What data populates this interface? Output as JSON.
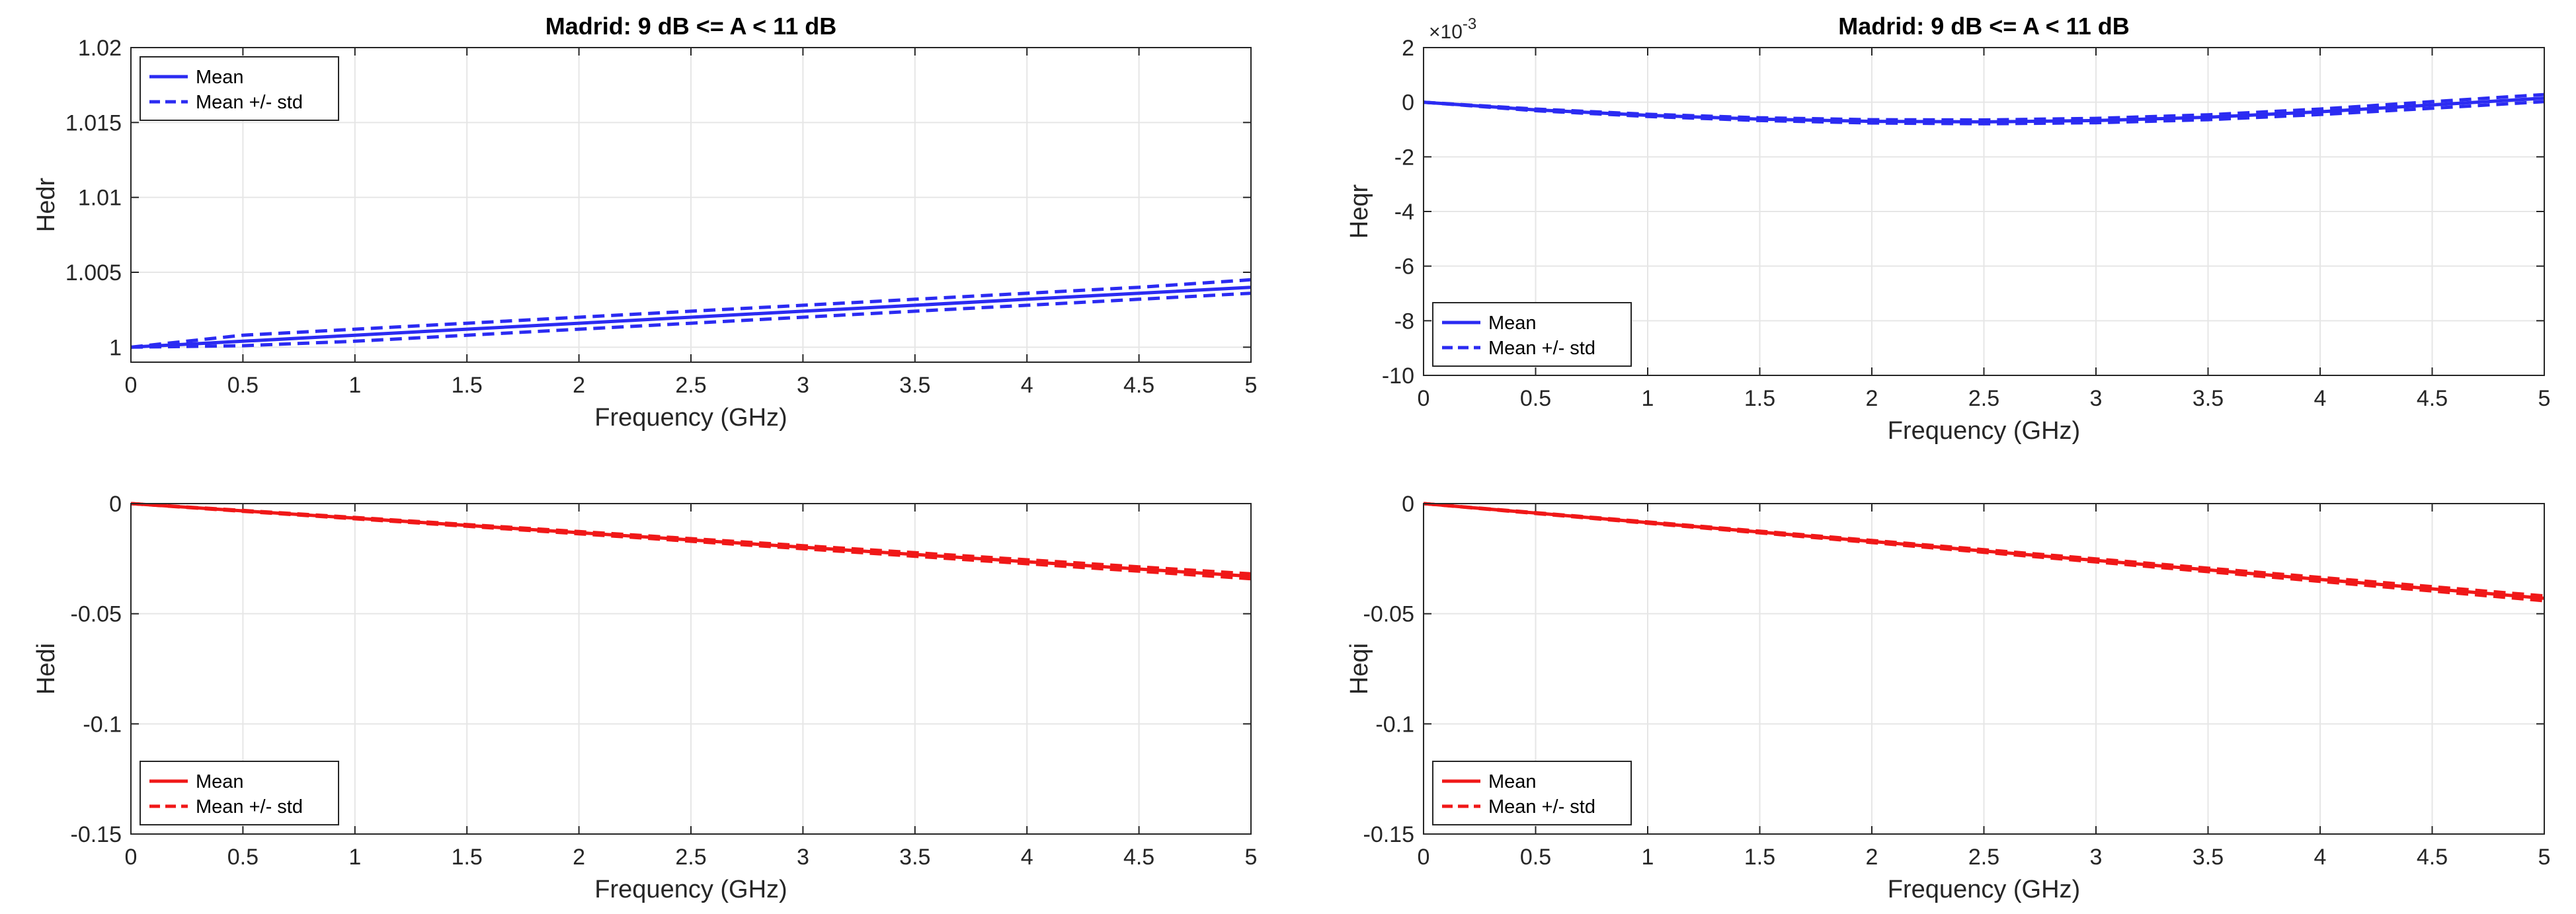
{
  "chart_data": [
    {
      "id": "hedr",
      "type": "line",
      "title": "Madrid: 9 dB <= A < 11 dB",
      "xlabel": "Frequency (GHz)",
      "ylabel": "Hedr",
      "xlim": [
        0,
        5
      ],
      "ylim": [
        0.999,
        1.02
      ],
      "xticks": [
        "0",
        "0.5",
        "1",
        "1.5",
        "2",
        "2.5",
        "3",
        "3.5",
        "4",
        "4.5",
        "5"
      ],
      "yticks": [
        "1",
        "1.005",
        "1.01",
        "1.015",
        "1.02"
      ],
      "grid": true,
      "color": "#2b2bf2",
      "legend": {
        "position": "top-left",
        "entries": [
          "Mean",
          "Mean +/- std"
        ]
      },
      "series": [
        {
          "name": "Mean",
          "style": "solid",
          "x": [
            0,
            0.5,
            1,
            1.5,
            2,
            2.5,
            3,
            3.5,
            4,
            4.5,
            5
          ],
          "y": [
            1.0,
            1.0004,
            1.0008,
            1.0012,
            1.0016,
            1.002,
            1.0024,
            1.0028,
            1.0032,
            1.0036,
            1.004
          ]
        },
        {
          "name": "Mean + std",
          "style": "dashed",
          "x": [
            0,
            0.5,
            1,
            1.5,
            2,
            2.5,
            3,
            3.5,
            4,
            4.5,
            5
          ],
          "y": [
            1.0,
            1.0008,
            1.0012,
            1.0016,
            1.002,
            1.0024,
            1.0028,
            1.0032,
            1.0036,
            1.004,
            1.0045
          ]
        },
        {
          "name": "Mean - std",
          "style": "dashed",
          "x": [
            0,
            0.5,
            1,
            1.5,
            2,
            2.5,
            3,
            3.5,
            4,
            4.5,
            5
          ],
          "y": [
            1.0,
            1.0001,
            1.0004,
            1.0008,
            1.0012,
            1.0016,
            1.002,
            1.0024,
            1.0028,
            1.0032,
            1.0036
          ]
        }
      ]
    },
    {
      "id": "heqr",
      "type": "line",
      "title": "Madrid: 9 dB <= A < 11 dB",
      "xlabel": "Frequency (GHz)",
      "ylabel": "Heqr",
      "xlim": [
        0,
        5
      ],
      "ylim": [
        -10,
        2
      ],
      "exponent": {
        "base": "×10",
        "power": "-3"
      },
      "xticks": [
        "0",
        "0.5",
        "1",
        "1.5",
        "2",
        "2.5",
        "3",
        "3.5",
        "4",
        "4.5",
        "5"
      ],
      "yticks": [
        "-10",
        "-8",
        "-6",
        "-4",
        "-2",
        "0",
        "2"
      ],
      "grid": true,
      "color": "#2b2bf2",
      "legend": {
        "position": "bottom-left",
        "entries": [
          "Mean",
          "Mean +/- std"
        ]
      },
      "series": [
        {
          "name": "Mean",
          "style": "solid",
          "x": [
            0,
            0.5,
            1,
            1.5,
            2,
            2.5,
            3,
            3.5,
            4,
            4.5,
            5
          ],
          "y": [
            0,
            -0.28,
            -0.48,
            -0.62,
            -0.7,
            -0.72,
            -0.67,
            -0.55,
            -0.35,
            -0.1,
            0.15
          ]
        },
        {
          "name": "Mean + std",
          "style": "dashed",
          "x": [
            0,
            0.5,
            1,
            1.5,
            2,
            2.5,
            3,
            3.5,
            4,
            4.5,
            5
          ],
          "y": [
            0,
            -0.25,
            -0.44,
            -0.57,
            -0.64,
            -0.65,
            -0.59,
            -0.46,
            -0.25,
            0.02,
            0.28
          ]
        },
        {
          "name": "Mean - std",
          "style": "dashed",
          "x": [
            0,
            0.5,
            1,
            1.5,
            2,
            2.5,
            3,
            3.5,
            4,
            4.5,
            5
          ],
          "y": [
            0,
            -0.31,
            -0.52,
            -0.67,
            -0.76,
            -0.79,
            -0.75,
            -0.64,
            -0.45,
            -0.22,
            0.02
          ]
        }
      ]
    },
    {
      "id": "hedi",
      "type": "line",
      "title": "",
      "xlabel": "Frequency (GHz)",
      "ylabel": "Hedi",
      "xlim": [
        0,
        5
      ],
      "ylim": [
        -0.15,
        0
      ],
      "xticks": [
        "0",
        "0.5",
        "1",
        "1.5",
        "2",
        "2.5",
        "3",
        "3.5",
        "4",
        "4.5",
        "5"
      ],
      "yticks": [
        "-0.15",
        "-0.1",
        "-0.05",
        "0"
      ],
      "grid": true,
      "color": "#f01818",
      "legend": {
        "position": "bottom-left",
        "entries": [
          "Mean",
          "Mean +/- std"
        ]
      },
      "series": [
        {
          "name": "Mean",
          "style": "solid",
          "x": [
            0,
            0.5,
            1,
            1.5,
            2,
            2.5,
            3,
            3.5,
            4,
            4.5,
            5
          ],
          "y": [
            0,
            -0.0033,
            -0.0066,
            -0.0099,
            -0.0132,
            -0.0165,
            -0.0198,
            -0.0231,
            -0.0264,
            -0.0297,
            -0.033
          ]
        },
        {
          "name": "Mean + std",
          "style": "dashed",
          "x": [
            0,
            0.5,
            1,
            1.5,
            2,
            2.5,
            3,
            3.5,
            4,
            4.5,
            5
          ],
          "y": [
            0,
            -0.0031,
            -0.0063,
            -0.0095,
            -0.0127,
            -0.0159,
            -0.0191,
            -0.0223,
            -0.0255,
            -0.0287,
            -0.0319
          ]
        },
        {
          "name": "Mean - std",
          "style": "dashed",
          "x": [
            0,
            0.5,
            1,
            1.5,
            2,
            2.5,
            3,
            3.5,
            4,
            4.5,
            5
          ],
          "y": [
            0,
            -0.0035,
            -0.0069,
            -0.0103,
            -0.0137,
            -0.0171,
            -0.0205,
            -0.0239,
            -0.0273,
            -0.0307,
            -0.0341
          ]
        }
      ]
    },
    {
      "id": "heqi",
      "type": "line",
      "title": "",
      "xlabel": "Frequency (GHz)",
      "ylabel": "Heqi",
      "xlim": [
        0,
        5
      ],
      "ylim": [
        -0.15,
        0
      ],
      "xticks": [
        "0",
        "0.5",
        "1",
        "1.5",
        "2",
        "2.5",
        "3",
        "3.5",
        "4",
        "4.5",
        "5"
      ],
      "yticks": [
        "-0.15",
        "-0.1",
        "-0.05",
        "0"
      ],
      "grid": true,
      "color": "#f01818",
      "legend": {
        "position": "bottom-left",
        "entries": [
          "Mean",
          "Mean +/- std"
        ]
      },
      "series": [
        {
          "name": "Mean",
          "style": "solid",
          "x": [
            0,
            0.5,
            1,
            1.5,
            2,
            2.5,
            3,
            3.5,
            4,
            4.5,
            5
          ],
          "y": [
            0,
            -0.0043,
            -0.0086,
            -0.0129,
            -0.0172,
            -0.0215,
            -0.0258,
            -0.0301,
            -0.0344,
            -0.0387,
            -0.043
          ]
        },
        {
          "name": "Mean + std",
          "style": "dashed",
          "x": [
            0,
            0.5,
            1,
            1.5,
            2,
            2.5,
            3,
            3.5,
            4,
            4.5,
            5
          ],
          "y": [
            0,
            -0.0041,
            -0.0083,
            -0.0125,
            -0.0167,
            -0.0209,
            -0.0251,
            -0.0293,
            -0.0335,
            -0.0377,
            -0.0419
          ]
        },
        {
          "name": "Mean - std",
          "style": "dashed",
          "x": [
            0,
            0.5,
            1,
            1.5,
            2,
            2.5,
            3,
            3.5,
            4,
            4.5,
            5
          ],
          "y": [
            0,
            -0.0045,
            -0.0089,
            -0.0133,
            -0.0177,
            -0.0221,
            -0.0265,
            -0.0309,
            -0.0353,
            -0.0397,
            -0.0441
          ]
        }
      ]
    }
  ]
}
